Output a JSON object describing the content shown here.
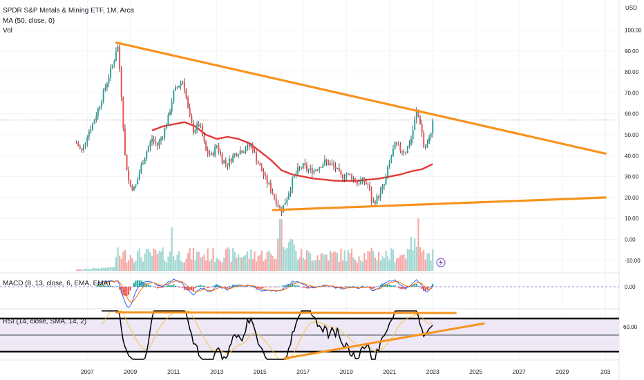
{
  "legend": {
    "title": "SPDR S&P Metals & Mining ETF, 1M, Arca",
    "ma": "MA (50, close, 0)",
    "vol": "Vol",
    "macd": "MACD (8, 13, close, 6, EMA, EMA)",
    "rsi": "RSI (14, close, SMA, 14, 2)"
  },
  "price_axis": {
    "currency": "USD",
    "ticks": [
      "100.00",
      "90.00",
      "80.00",
      "70.00",
      "60.00",
      "50.00",
      "40.00",
      "30.00",
      "20.00",
      "10.00",
      "0.00",
      "-10.00"
    ]
  },
  "macd_axis": {
    "ticks": [
      "0.00"
    ]
  },
  "rsi_axis": {
    "ticks": [
      "60.00"
    ]
  },
  "time_axis": {
    "labels": [
      "2007",
      "2009",
      "2011",
      "2013",
      "2015",
      "2017",
      "2019",
      "2021",
      "2023",
      "2025",
      "2027",
      "2029",
      "203"
    ]
  },
  "colors": {
    "up": "#26a69a",
    "down": "#ef5350",
    "vol_up": "#9fd8d3",
    "vol_down": "#f7a9a7",
    "ma": "#e53935",
    "trendline": "#f7931e",
    "macd_line": "#2962ff",
    "signal_line": "#ff6d00",
    "rsi_line": "#000000",
    "rsi_ma": "#f5c542",
    "rsi_band": "#ede7f6",
    "grid": "#f0f3fa"
  },
  "chart_data": {
    "type": "line",
    "title": "SPDR S&P Metals & Mining ETF, 1M, Arca",
    "ylabel": "USD",
    "ylim": [
      -10,
      105
    ],
    "x_range": [
      2006.0,
      2031.0
    ],
    "price_series": [
      [
        2006.5,
        46
      ],
      [
        2006.75,
        42
      ],
      [
        2007.0,
        50
      ],
      [
        2007.25,
        55
      ],
      [
        2007.5,
        62
      ],
      [
        2007.75,
        70
      ],
      [
        2008.0,
        78
      ],
      [
        2008.25,
        86
      ],
      [
        2008.4,
        94
      ],
      [
        2008.55,
        75
      ],
      [
        2008.75,
        40
      ],
      [
        2008.95,
        26
      ],
      [
        2009.2,
        24
      ],
      [
        2009.5,
        35
      ],
      [
        2009.75,
        42
      ],
      [
        2010.0,
        48
      ],
      [
        2010.25,
        45
      ],
      [
        2010.5,
        50
      ],
      [
        2010.75,
        58
      ],
      [
        2011.0,
        70
      ],
      [
        2011.25,
        74
      ],
      [
        2011.45,
        76
      ],
      [
        2011.7,
        60
      ],
      [
        2011.9,
        52
      ],
      [
        2012.2,
        55
      ],
      [
        2012.5,
        42
      ],
      [
        2012.75,
        40
      ],
      [
        2013.0,
        45
      ],
      [
        2013.25,
        38
      ],
      [
        2013.5,
        36
      ],
      [
        2013.75,
        40
      ],
      [
        2014.0,
        42
      ],
      [
        2014.25,
        43
      ],
      [
        2014.6,
        45
      ],
      [
        2014.85,
        38
      ],
      [
        2015.2,
        30
      ],
      [
        2015.5,
        24
      ],
      [
        2015.8,
        17
      ],
      [
        2016.0,
        14
      ],
      [
        2016.25,
        20
      ],
      [
        2016.5,
        28
      ],
      [
        2016.75,
        33
      ],
      [
        2017.0,
        35
      ],
      [
        2017.25,
        33
      ],
      [
        2017.5,
        33
      ],
      [
        2017.75,
        35
      ],
      [
        2018.0,
        37
      ],
      [
        2018.25,
        36
      ],
      [
        2018.5,
        34
      ],
      [
        2018.75,
        30
      ],
      [
        2019.0,
        31
      ],
      [
        2019.25,
        30
      ],
      [
        2019.5,
        27
      ],
      [
        2019.75,
        28
      ],
      [
        2020.0,
        26
      ],
      [
        2020.2,
        17
      ],
      [
        2020.45,
        20
      ],
      [
        2020.75,
        26
      ],
      [
        2021.0,
        37
      ],
      [
        2021.25,
        45
      ],
      [
        2021.5,
        43
      ],
      [
        2021.75,
        42
      ],
      [
        2022.0,
        48
      ],
      [
        2022.25,
        61
      ],
      [
        2022.45,
        55
      ],
      [
        2022.6,
        43
      ],
      [
        2022.8,
        46
      ],
      [
        2023.0,
        56
      ]
    ],
    "ma50": [
      [
        2010.0,
        52
      ],
      [
        2010.5,
        54
      ],
      [
        2011.0,
        55
      ],
      [
        2011.5,
        56
      ],
      [
        2012.0,
        54
      ],
      [
        2012.5,
        50
      ],
      [
        2013.0,
        48
      ],
      [
        2013.5,
        49
      ],
      [
        2014.0,
        48
      ],
      [
        2014.5,
        46
      ],
      [
        2015.0,
        42
      ],
      [
        2015.5,
        38
      ],
      [
        2016.0,
        33
      ],
      [
        2016.5,
        31
      ],
      [
        2017.0,
        30
      ],
      [
        2017.5,
        29
      ],
      [
        2018.0,
        28.5
      ],
      [
        2018.5,
        28
      ],
      [
        2019.0,
        28
      ],
      [
        2019.5,
        28
      ],
      [
        2020.0,
        28.5
      ],
      [
        2020.5,
        29
      ],
      [
        2021.0,
        30
      ],
      [
        2021.5,
        31
      ],
      [
        2022.0,
        32.5
      ],
      [
        2022.5,
        33.5
      ],
      [
        2023.0,
        36
      ]
    ],
    "trendlines": [
      {
        "from": [
          2008.35,
          94
        ],
        "to": [
          2031.0,
          41
        ]
      },
      {
        "from": [
          2015.6,
          14
        ],
        "to": [
          2031.0,
          20
        ]
      }
    ],
    "current_price": 57,
    "volume_note": "monthly volume histogram, sharply higher from 2008 onward"
  }
}
